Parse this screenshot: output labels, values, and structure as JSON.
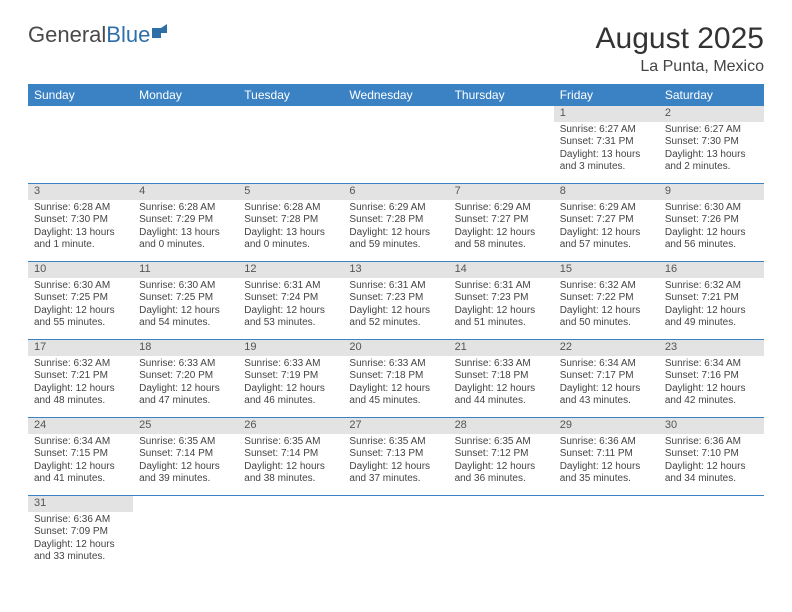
{
  "logo": {
    "text1": "General",
    "text2": "Blue"
  },
  "title": "August 2025",
  "location": "La Punta, Mexico",
  "colors": {
    "header_bg": "#3b82c4",
    "header_fg": "#ffffff",
    "daynum_bg": "#e3e3e3",
    "cell_border": "#3b82c4",
    "text": "#333333"
  },
  "day_headers": [
    "Sunday",
    "Monday",
    "Tuesday",
    "Wednesday",
    "Thursday",
    "Friday",
    "Saturday"
  ],
  "weeks": [
    [
      null,
      null,
      null,
      null,
      null,
      {
        "n": "1",
        "sr": "Sunrise: 6:27 AM",
        "ss": "Sunset: 7:31 PM",
        "dl": "Daylight: 13 hours and 3 minutes."
      },
      {
        "n": "2",
        "sr": "Sunrise: 6:27 AM",
        "ss": "Sunset: 7:30 PM",
        "dl": "Daylight: 13 hours and 2 minutes."
      }
    ],
    [
      {
        "n": "3",
        "sr": "Sunrise: 6:28 AM",
        "ss": "Sunset: 7:30 PM",
        "dl": "Daylight: 13 hours and 1 minute."
      },
      {
        "n": "4",
        "sr": "Sunrise: 6:28 AM",
        "ss": "Sunset: 7:29 PM",
        "dl": "Daylight: 13 hours and 0 minutes."
      },
      {
        "n": "5",
        "sr": "Sunrise: 6:28 AM",
        "ss": "Sunset: 7:28 PM",
        "dl": "Daylight: 13 hours and 0 minutes."
      },
      {
        "n": "6",
        "sr": "Sunrise: 6:29 AM",
        "ss": "Sunset: 7:28 PM",
        "dl": "Daylight: 12 hours and 59 minutes."
      },
      {
        "n": "7",
        "sr": "Sunrise: 6:29 AM",
        "ss": "Sunset: 7:27 PM",
        "dl": "Daylight: 12 hours and 58 minutes."
      },
      {
        "n": "8",
        "sr": "Sunrise: 6:29 AM",
        "ss": "Sunset: 7:27 PM",
        "dl": "Daylight: 12 hours and 57 minutes."
      },
      {
        "n": "9",
        "sr": "Sunrise: 6:30 AM",
        "ss": "Sunset: 7:26 PM",
        "dl": "Daylight: 12 hours and 56 minutes."
      }
    ],
    [
      {
        "n": "10",
        "sr": "Sunrise: 6:30 AM",
        "ss": "Sunset: 7:25 PM",
        "dl": "Daylight: 12 hours and 55 minutes."
      },
      {
        "n": "11",
        "sr": "Sunrise: 6:30 AM",
        "ss": "Sunset: 7:25 PM",
        "dl": "Daylight: 12 hours and 54 minutes."
      },
      {
        "n": "12",
        "sr": "Sunrise: 6:31 AM",
        "ss": "Sunset: 7:24 PM",
        "dl": "Daylight: 12 hours and 53 minutes."
      },
      {
        "n": "13",
        "sr": "Sunrise: 6:31 AM",
        "ss": "Sunset: 7:23 PM",
        "dl": "Daylight: 12 hours and 52 minutes."
      },
      {
        "n": "14",
        "sr": "Sunrise: 6:31 AM",
        "ss": "Sunset: 7:23 PM",
        "dl": "Daylight: 12 hours and 51 minutes."
      },
      {
        "n": "15",
        "sr": "Sunrise: 6:32 AM",
        "ss": "Sunset: 7:22 PM",
        "dl": "Daylight: 12 hours and 50 minutes."
      },
      {
        "n": "16",
        "sr": "Sunrise: 6:32 AM",
        "ss": "Sunset: 7:21 PM",
        "dl": "Daylight: 12 hours and 49 minutes."
      }
    ],
    [
      {
        "n": "17",
        "sr": "Sunrise: 6:32 AM",
        "ss": "Sunset: 7:21 PM",
        "dl": "Daylight: 12 hours and 48 minutes."
      },
      {
        "n": "18",
        "sr": "Sunrise: 6:33 AM",
        "ss": "Sunset: 7:20 PM",
        "dl": "Daylight: 12 hours and 47 minutes."
      },
      {
        "n": "19",
        "sr": "Sunrise: 6:33 AM",
        "ss": "Sunset: 7:19 PM",
        "dl": "Daylight: 12 hours and 46 minutes."
      },
      {
        "n": "20",
        "sr": "Sunrise: 6:33 AM",
        "ss": "Sunset: 7:18 PM",
        "dl": "Daylight: 12 hours and 45 minutes."
      },
      {
        "n": "21",
        "sr": "Sunrise: 6:33 AM",
        "ss": "Sunset: 7:18 PM",
        "dl": "Daylight: 12 hours and 44 minutes."
      },
      {
        "n": "22",
        "sr": "Sunrise: 6:34 AM",
        "ss": "Sunset: 7:17 PM",
        "dl": "Daylight: 12 hours and 43 minutes."
      },
      {
        "n": "23",
        "sr": "Sunrise: 6:34 AM",
        "ss": "Sunset: 7:16 PM",
        "dl": "Daylight: 12 hours and 42 minutes."
      }
    ],
    [
      {
        "n": "24",
        "sr": "Sunrise: 6:34 AM",
        "ss": "Sunset: 7:15 PM",
        "dl": "Daylight: 12 hours and 41 minutes."
      },
      {
        "n": "25",
        "sr": "Sunrise: 6:35 AM",
        "ss": "Sunset: 7:14 PM",
        "dl": "Daylight: 12 hours and 39 minutes."
      },
      {
        "n": "26",
        "sr": "Sunrise: 6:35 AM",
        "ss": "Sunset: 7:14 PM",
        "dl": "Daylight: 12 hours and 38 minutes."
      },
      {
        "n": "27",
        "sr": "Sunrise: 6:35 AM",
        "ss": "Sunset: 7:13 PM",
        "dl": "Daylight: 12 hours and 37 minutes."
      },
      {
        "n": "28",
        "sr": "Sunrise: 6:35 AM",
        "ss": "Sunset: 7:12 PM",
        "dl": "Daylight: 12 hours and 36 minutes."
      },
      {
        "n": "29",
        "sr": "Sunrise: 6:36 AM",
        "ss": "Sunset: 7:11 PM",
        "dl": "Daylight: 12 hours and 35 minutes."
      },
      {
        "n": "30",
        "sr": "Sunrise: 6:36 AM",
        "ss": "Sunset: 7:10 PM",
        "dl": "Daylight: 12 hours and 34 minutes."
      }
    ],
    [
      {
        "n": "31",
        "sr": "Sunrise: 6:36 AM",
        "ss": "Sunset: 7:09 PM",
        "dl": "Daylight: 12 hours and 33 minutes."
      },
      null,
      null,
      null,
      null,
      null,
      null
    ]
  ]
}
